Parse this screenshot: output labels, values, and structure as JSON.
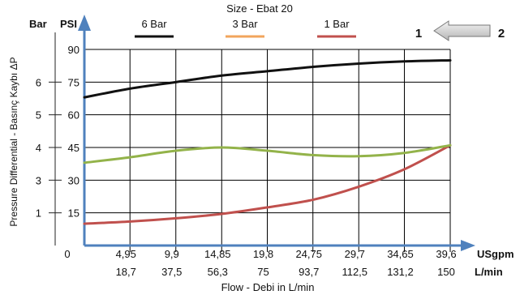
{
  "chart_data": {
    "type": "line",
    "title": "Size - Ebat 20",
    "xlabel": "Flow - Debi  in L/min",
    "ylabel": "Pressure Differential - Basınç Kaybı  ΔP",
    "x_unit_primary": "USgpm",
    "x_unit_secondary": "L/min",
    "y_unit_bar": "Bar",
    "y_unit_psi": "PSI",
    "origin_label": "0",
    "x_ticks_usgpm": [
      "4,95",
      "9,9",
      "14,85",
      "19,8",
      "24,75",
      "29,7",
      "34,65",
      "39,6"
    ],
    "x_ticks_lmin": [
      "18,7",
      "37,5",
      "56,3",
      "75",
      "93,7",
      "112,5",
      "131,2",
      "150"
    ],
    "xlim": [
      0,
      150
    ],
    "y_ticks_psi": [
      "15",
      "30",
      "45",
      "60",
      "75",
      "90"
    ],
    "y_ticks_bar": [
      "1",
      "3",
      "4",
      "5",
      "6"
    ],
    "ylim_psi": [
      0,
      90
    ],
    "grid": true,
    "legend_position": "top",
    "flow_direction": {
      "from_label": "2",
      "to_label": "1"
    },
    "series": [
      {
        "name": "6 Bar",
        "color": "#111111",
        "x": [
          0,
          18.7,
          37.5,
          56.3,
          75,
          93.7,
          112.5,
          131.2,
          150
        ],
        "y": [
          68,
          72,
          75,
          78,
          80,
          82,
          83.5,
          84.5,
          85
        ]
      },
      {
        "name": "3 Bar",
        "color": "#f2a55c",
        "x": [
          0,
          18.7,
          37.5,
          56.3,
          75,
          93.7,
          112.5,
          131.2,
          150
        ],
        "y": [
          38,
          40.5,
          43.5,
          45,
          43.5,
          41.5,
          41,
          42.5,
          46
        ]
      },
      {
        "name": "1 Bar",
        "color": "#c0504d",
        "x": [
          0,
          18.7,
          37.5,
          56.3,
          75,
          93.7,
          112.5,
          131.2,
          150
        ],
        "y": [
          10,
          11,
          12.5,
          14.5,
          17.5,
          21,
          27,
          35,
          46
        ]
      },
      {
        "name": "",
        "color": "#93b34a",
        "x": [
          0,
          18.7,
          37.5,
          56.3,
          75,
          93.7,
          112.5,
          131.2,
          150
        ],
        "y": [
          38,
          40.5,
          43.5,
          45,
          43.5,
          41.5,
          41,
          42.5,
          46
        ]
      }
    ]
  }
}
